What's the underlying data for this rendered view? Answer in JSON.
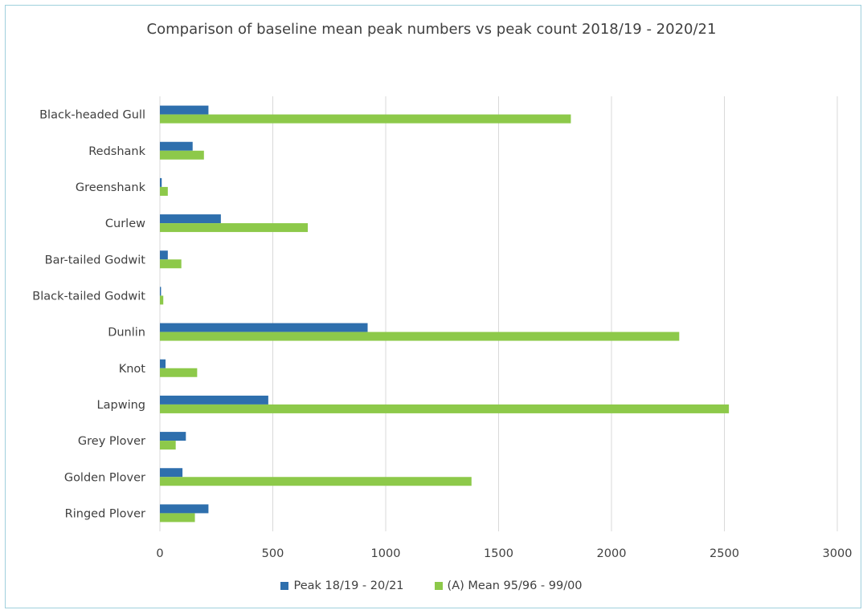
{
  "chart_data": {
    "type": "bar",
    "orientation": "horizontal",
    "title": "Comparison of baseline mean peak numbers  vs peak count 2018/19 - 2020/21",
    "categories": [
      "Black-headed Gull",
      "Redshank",
      "Greenshank",
      "Curlew",
      "Bar-tailed Godwit",
      "Black-tailed Godwit",
      "Dunlin",
      "Knot",
      "Lapwing",
      "Grey Plover",
      "Golden Plover",
      "Ringed Plover"
    ],
    "series": [
      {
        "name": "Peak 18/19 - 20/21",
        "color": "#2e6fad",
        "values": [
          215,
          145,
          8,
          270,
          35,
          5,
          920,
          25,
          480,
          115,
          100,
          215
        ]
      },
      {
        "name": "(A) Mean 95/96 - 99/00",
        "color": "#8dc94a",
        "values": [
          1820,
          195,
          35,
          655,
          95,
          15,
          2300,
          165,
          2520,
          70,
          1380,
          155
        ]
      }
    ],
    "xlim": [
      0,
      3000
    ],
    "xticks": [
      "0",
      "500",
      "1000",
      "1500",
      "2000",
      "2500",
      "3000"
    ],
    "grid": true,
    "legend_position": "bottom"
  }
}
